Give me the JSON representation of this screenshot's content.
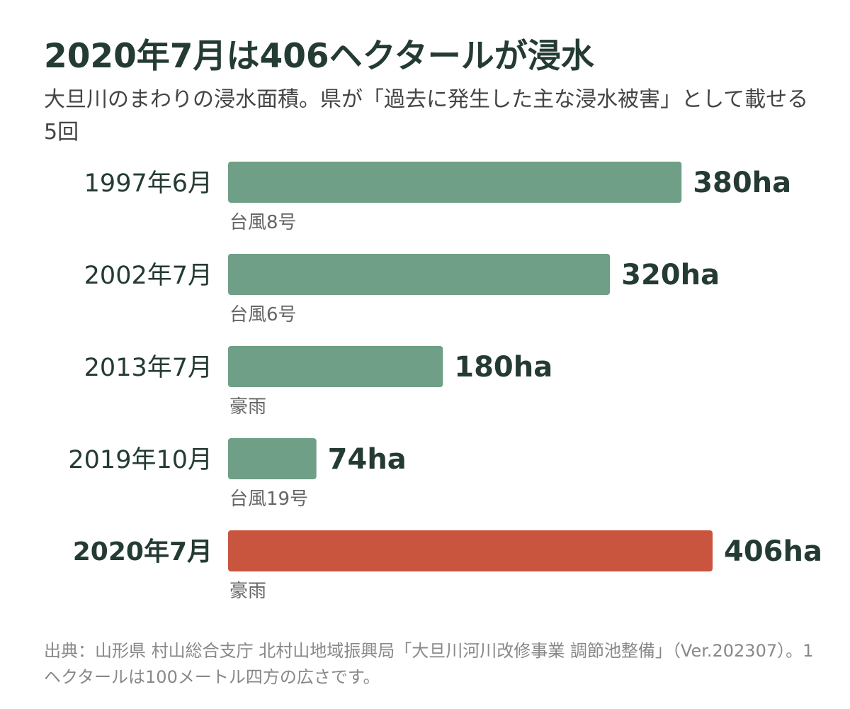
{
  "chart_data": {
    "type": "bar",
    "orientation": "horizontal",
    "title": "2020年7月は406ヘクタールが浸水",
    "subtitle": "大旦川のまわりの浸水面積。県が「過去に発生した主な浸水被害」として載せる5回",
    "categories": [
      "1997年6月",
      "2002年7月",
      "2013年7月",
      "2019年10月",
      "2020年7月"
    ],
    "values": [
      380,
      320,
      180,
      74,
      406
    ],
    "value_labels": [
      "380ha",
      "320ha",
      "180ha",
      "74ha",
      "406ha"
    ],
    "causes": [
      "台風8号",
      "台風6号",
      "豪雨",
      "台風19号",
      "豪雨"
    ],
    "highlighted": [
      false,
      false,
      false,
      false,
      true
    ],
    "unit": "ha",
    "xlim": [
      0,
      406
    ],
    "grid": false,
    "colors": {
      "bar": "#6f9f86",
      "highlight": "#c9553f",
      "text": "#243b33",
      "cause": "#666666"
    }
  },
  "footnote": "出典：山形県 村山総合支庁 北村山地域振興局「大旦川河川改修事業 調節池整備」（Ver.202307）。1ヘクタールは100メートル四方の広さです。"
}
